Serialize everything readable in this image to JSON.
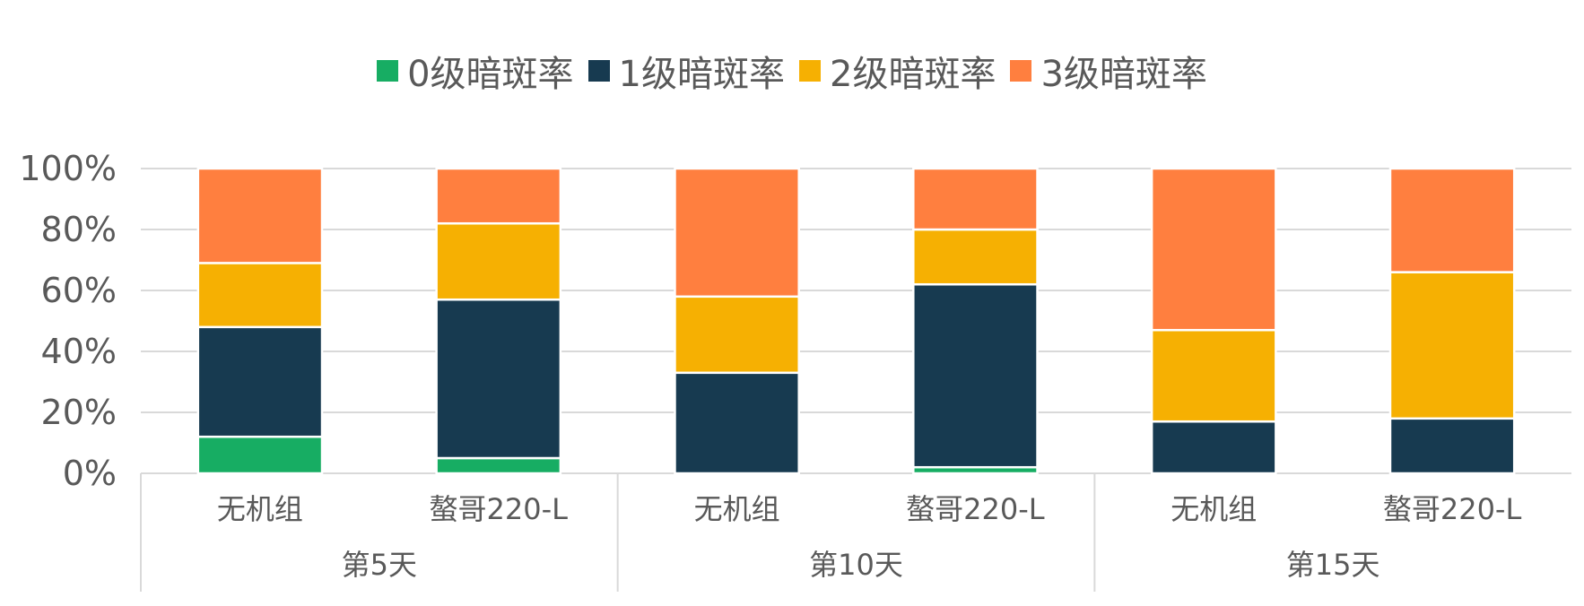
{
  "chart_data": {
    "type": "bar",
    "stacked": true,
    "percent": true,
    "title": "",
    "xlabel": "",
    "ylabel": "",
    "ylim": [
      0,
      100
    ],
    "yticks": [
      "0%",
      "20%",
      "40%",
      "60%",
      "80%",
      "100%"
    ],
    "grid": true,
    "legend_position": "top",
    "groups": [
      {
        "label": "第5天",
        "categories": [
          "无机组",
          "螯哥220-L"
        ]
      },
      {
        "label": "第10天",
        "categories": [
          "无机组",
          "螯哥220-L"
        ]
      },
      {
        "label": "第15天",
        "categories": [
          "无机组",
          "螯哥220-L"
        ]
      }
    ],
    "categories": [
      "无机组",
      "螯哥220-L",
      "无机组",
      "螯哥220-L",
      "无机组",
      "螯哥220-L"
    ],
    "series": [
      {
        "name": "0级暗斑率",
        "color": "#17AD63",
        "values": [
          12,
          5,
          0,
          2,
          0,
          0
        ]
      },
      {
        "name": "1级暗斑率",
        "color": "#173A50",
        "values": [
          36,
          52,
          33,
          60,
          17,
          18
        ]
      },
      {
        "name": "2级暗斑率",
        "color": "#F6B002",
        "values": [
          21,
          25,
          25,
          18,
          30,
          48
        ]
      },
      {
        "name": "3级暗斑率",
        "color": "#FF7F3F",
        "values": [
          31,
          18,
          42,
          20,
          53,
          34
        ]
      }
    ]
  }
}
